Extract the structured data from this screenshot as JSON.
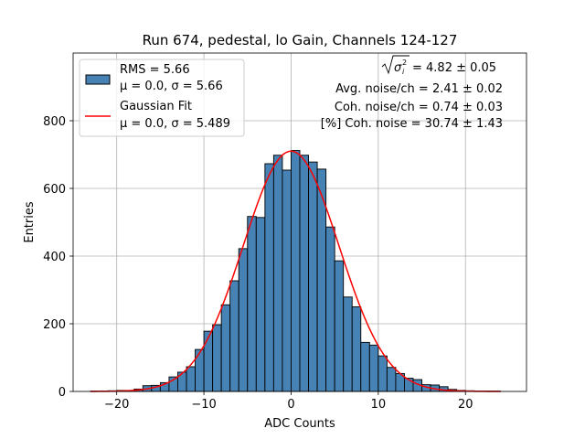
{
  "chart_data": {
    "type": "bar",
    "title": "Run 674, pedestal, lo Gain, Channels 124-127",
    "xlabel": "ADC Counts",
    "ylabel": "Entries",
    "xlim": [
      -25,
      27
    ],
    "ylim": [
      0,
      1000
    ],
    "grid": true,
    "legend_position": "top-left",
    "colors": {
      "bars": "#4682b4",
      "bar_edge": "#000000",
      "fit": "#ff0000"
    },
    "x_ticks": [
      -20,
      -10,
      0,
      10,
      20
    ],
    "x_tick_labels": [
      "−20",
      "−10",
      "0",
      "10",
      "20"
    ],
    "y_ticks": [
      0,
      200,
      400,
      600,
      800
    ],
    "y_tick_labels": [
      "0",
      "200",
      "400",
      "600",
      "800"
    ],
    "bin_edges": [
      -23,
      -22,
      -21,
      -20,
      -19,
      -18,
      -17,
      -16,
      -15,
      -14,
      -13,
      -12,
      -11,
      -10,
      -9,
      -8,
      -7,
      -6,
      -5,
      -4,
      -3,
      -2,
      -1,
      0,
      1,
      2,
      3,
      4,
      5,
      6,
      7,
      8,
      9,
      10,
      11,
      12,
      13,
      14,
      15,
      16,
      17,
      18,
      19,
      20,
      21,
      22,
      23,
      24
    ],
    "histogram_values": [
      1,
      1,
      2,
      3,
      3,
      7,
      17,
      18,
      26,
      43,
      57,
      73,
      124,
      178,
      197,
      256,
      327,
      422,
      517,
      514,
      673,
      698,
      654,
      712,
      698,
      678,
      657,
      486,
      386,
      279,
      250,
      145,
      137,
      105,
      71,
      53,
      39,
      35,
      20,
      19,
      14,
      6,
      3,
      2,
      1,
      1,
      1
    ],
    "series": [
      {
        "name": "RMS = 5.66\nμ = 0.0, σ = 5.66",
        "legend_lines": [
          "RMS = 5.66",
          "μ = 0.0, σ = 5.66"
        ],
        "kind": "histogram"
      },
      {
        "name": "Gaussian Fit\nμ = 0.0, σ = 5.489",
        "legend_lines": [
          "Gaussian Fit",
          "μ = 0.0, σ = 5.489"
        ],
        "kind": "line",
        "mu": 0.0,
        "sigma": 5.489,
        "amplitude": 710,
        "x_range": [
          -23,
          24
        ]
      }
    ],
    "annotations": {
      "sqrt_label": "σ",
      "sqrt_value": " = 4.82 ± 0.05",
      "lines": [
        "Avg. noise/ch = 2.41 ± 0.02",
        "Coh. noise/ch = 0.74 ± 0.03",
        "[%] Coh. noise = 30.74 ± 1.43"
      ]
    }
  }
}
